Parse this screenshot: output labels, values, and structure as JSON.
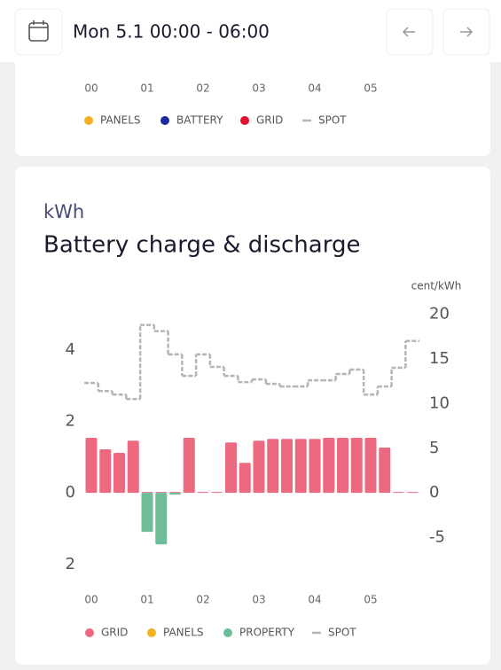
{
  "header": {
    "title": "Mon 5.1 00:00 - 06:00"
  },
  "top_card": {
    "x_labels": [
      "00",
      "01",
      "02",
      "03",
      "04",
      "05"
    ],
    "legend": [
      {
        "name": "PANELS",
        "color": "#f4b223"
      },
      {
        "name": "BATTERY",
        "color": "#1a2a9e"
      },
      {
        "name": "GRID",
        "color": "#e0102a"
      },
      {
        "name": "SPOT",
        "color": "#b5b5b5"
      }
    ]
  },
  "chart_data": {
    "type": "bar",
    "unit": "kWh",
    "title": "Battery charge & discharge",
    "y2_label": "cent/kWh",
    "categories": [
      "00",
      null,
      null,
      null,
      "01",
      null,
      null,
      null,
      "02",
      null,
      null,
      null,
      "03",
      null,
      null,
      null,
      "04",
      null,
      null,
      null,
      "05",
      null,
      null,
      null
    ],
    "series": [
      {
        "name": "GRID",
        "color": "#ec6a80",
        "values": [
          1.54,
          1.22,
          1.12,
          1.46,
          0,
          0,
          0,
          1.54,
          0,
          0,
          1.41,
          0.84,
          1.46,
          1.51,
          1.51,
          1.51,
          1.51,
          1.54,
          1.54,
          1.54,
          1.54,
          1.27,
          0,
          0
        ]
      },
      {
        "name": "PANELS",
        "color": "#f4b223",
        "values": [
          0,
          0,
          0,
          0,
          0,
          0,
          0,
          0,
          0,
          0,
          0,
          0,
          0,
          0,
          0,
          0,
          0,
          0,
          0,
          0,
          0,
          0,
          0,
          0
        ]
      },
      {
        "name": "PROPERTY",
        "color": "#6dbd98",
        "values": [
          0,
          0,
          0,
          0,
          -1.09,
          -1.44,
          -0.05,
          0,
          0,
          0,
          0,
          0,
          0,
          0,
          0,
          0,
          0,
          0,
          0,
          0,
          0,
          0,
          0,
          0
        ]
      },
      {
        "name": "SPOT",
        "color": "#b5b5b5",
        "axis": "y2",
        "values": [
          12.3,
          11.4,
          11.0,
          10.5,
          18.8,
          18.1,
          15.5,
          13.1,
          15.5,
          14.1,
          13.1,
          12.4,
          12.7,
          12.2,
          11.9,
          11.9,
          12.6,
          12.6,
          13.3,
          13.8,
          11.0,
          11.9,
          14.0,
          17.0
        ]
      }
    ],
    "ylim": [
      -2.5,
      5
    ],
    "yticks": [
      {
        "value": -2,
        "label": "2"
      },
      0,
      2,
      4
    ],
    "y2lim": [
      -10,
      20
    ],
    "y2ticks": [
      -5,
      0,
      5,
      10,
      15,
      20
    ]
  }
}
